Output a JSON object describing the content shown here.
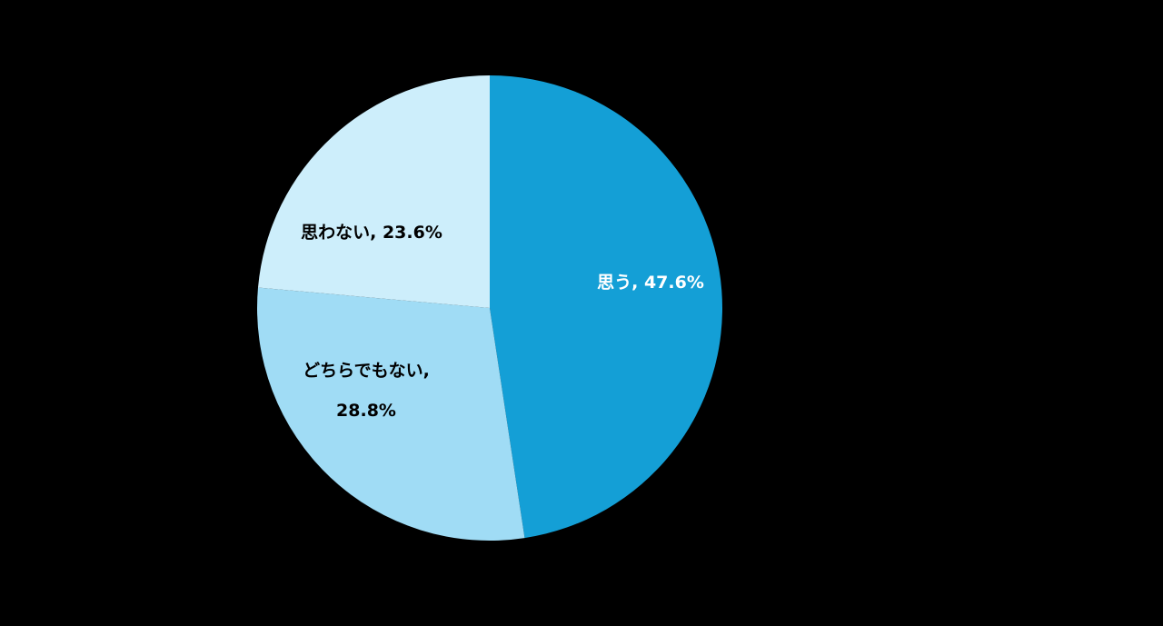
{
  "chart_data": {
    "type": "pie",
    "values": [
      47.6,
      28.8,
      23.6
    ],
    "value_labels": [
      "思う, 47.6%",
      "どちらでもない, 28.8%",
      "思わない, 23.6%"
    ],
    "colors": [
      "#149fd6",
      "#a0dcf5",
      "#cdeefb"
    ]
  }
}
